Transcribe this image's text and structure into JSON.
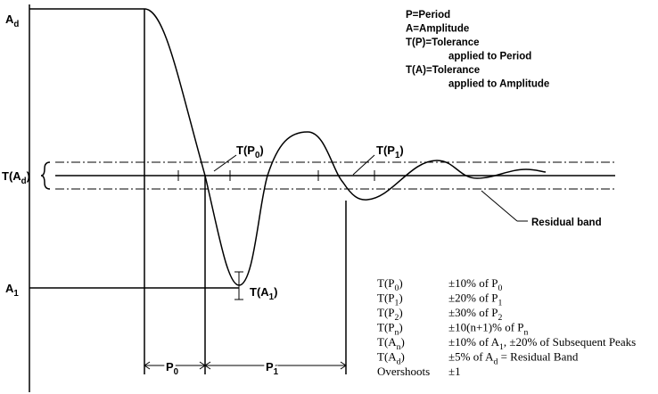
{
  "legend": [
    "P=Period",
    "A=Amplitude",
    "T(P)=Tolerance",
    "applied to Period",
    "T(A)=Tolerance",
    "applied to Amplitude"
  ],
  "labels": {
    "a_d": [
      "A",
      {
        "sub": "d"
      }
    ],
    "t_a_d": [
      "T(A",
      {
        "sub": "d"
      },
      ")"
    ],
    "a_1": [
      "A",
      {
        "sub": "1"
      }
    ],
    "t_a_1": [
      "T(A",
      {
        "sub": "1"
      },
      ")"
    ],
    "t_p_0": [
      "T(P",
      {
        "sub": "0"
      },
      ")"
    ],
    "t_p_1": [
      "T(P",
      {
        "sub": "1"
      },
      ")"
    ],
    "p_0": [
      "P",
      {
        "sub": "0"
      }
    ],
    "p_1": [
      "P",
      {
        "sub": "1"
      }
    ],
    "residual_band": [
      "Residual band"
    ]
  },
  "tolerances": [
    {
      "term": [
        "T(P",
        {
          "sub": "0"
        },
        ")"
      ],
      "rule": [
        "±10% of P",
        {
          "sub": "0"
        }
      ]
    },
    {
      "term": [
        "T(P",
        {
          "sub": "1"
        },
        ")"
      ],
      "rule": [
        "±20% of P",
        {
          "sub": "1"
        }
      ]
    },
    {
      "term": [
        "T(P",
        {
          "sub": "2"
        },
        ")"
      ],
      "rule": [
        "±30% of P",
        {
          "sub": "2"
        }
      ]
    },
    {
      "term": [
        "T(P",
        {
          "sub": "n"
        },
        ")"
      ],
      "rule": [
        "±10(n+1)% of P",
        {
          "sub": "n"
        }
      ]
    },
    {
      "term": [
        "T(A",
        {
          "sub": "n"
        },
        ")"
      ],
      "rule": [
        "±10% of A",
        {
          "sub": "1"
        },
        ", ±20% of Subsequent Peaks"
      ]
    },
    {
      "term": [
        "T(A",
        {
          "sub": "d"
        },
        ")"
      ],
      "rule": [
        "±5% of A",
        {
          "sub": "d"
        },
        " = Residual Band"
      ]
    },
    {
      "term": [
        "Overshoots"
      ],
      "rule": [
        "±1"
      ]
    }
  ]
}
